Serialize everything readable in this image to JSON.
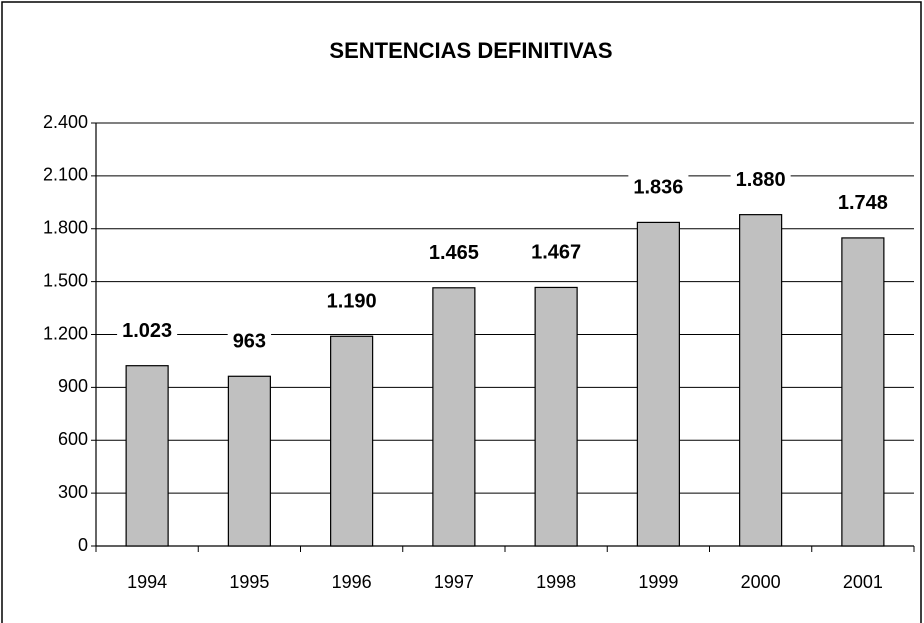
{
  "chart_data": {
    "type": "bar",
    "title": "SENTENCIAS DEFINITIVAS",
    "categories": [
      "1994",
      "1995",
      "1996",
      "1997",
      "1998",
      "1999",
      "2000",
      "2001"
    ],
    "values": [
      1023,
      963,
      1190,
      1465,
      1467,
      1836,
      1880,
      1748
    ],
    "value_labels": [
      "1.023",
      "963",
      "1.190",
      "1.465",
      "1.467",
      "1.836",
      "1.880",
      "1.748"
    ],
    "color": "#c0c0c0",
    "ylim": [
      0,
      2400
    ],
    "yticks": [
      0,
      300,
      600,
      900,
      {
        "value": 1200,
        "label": "1.200"
      },
      {
        "value": 1500,
        "label": "1.500"
      },
      {
        "value": 1800,
        "label": "1.800"
      },
      {
        "value": 2100,
        "label": "2.100"
      },
      {
        "value": 2400,
        "label": "2.400"
      }
    ],
    "grid": true
  }
}
